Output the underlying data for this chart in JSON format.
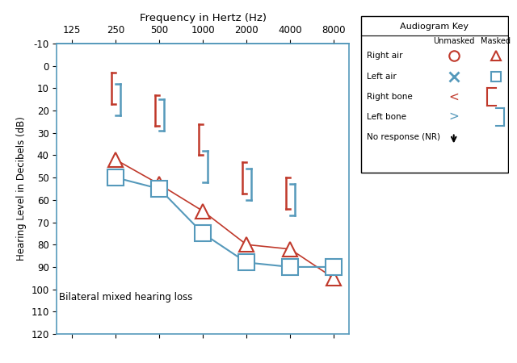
{
  "title_top": "Frequency in Hertz (Hz)",
  "ylabel": "Hearing Level in Decibels (dB)",
  "annotation": "Bilateral mixed hearing loss",
  "freq_labels": [
    "125",
    "250",
    "500",
    "1000",
    "2000",
    "4000",
    "8000"
  ],
  "freq_values": [
    125,
    250,
    500,
    1000,
    2000,
    4000,
    8000
  ],
  "yticks": [
    -10,
    0,
    10,
    20,
    30,
    40,
    50,
    60,
    70,
    80,
    90,
    100,
    110,
    120
  ],
  "red_color": "#c0392b",
  "blue_color": "#2980b9",
  "spine_color": "#5599bb",
  "right_air_masked_freqs": [
    250,
    500,
    1000,
    2000,
    4000,
    8000
  ],
  "right_air_masked_dB": [
    42,
    53,
    65,
    80,
    82,
    95
  ],
  "left_air_masked_freqs": [
    250,
    500,
    1000,
    2000,
    4000,
    8000
  ],
  "left_air_masked_dB": [
    50,
    55,
    75,
    88,
    90,
    90
  ],
  "right_bone_masked_freqs": [
    250,
    500,
    1000,
    2000,
    4000
  ],
  "right_bone_masked_dB": [
    10,
    20,
    33,
    50,
    57
  ],
  "left_bone_masked_freqs": [
    250,
    500,
    1000,
    2000,
    4000
  ],
  "left_bone_masked_dB": [
    15,
    22,
    45,
    53,
    60
  ],
  "legend_title": "Audiogram Key",
  "legend_col1": "Unmasked",
  "legend_col2": "Masked",
  "legend_rows": [
    "Right air",
    "Left air",
    "Right bone",
    "Left bone",
    "No response (NR)"
  ]
}
